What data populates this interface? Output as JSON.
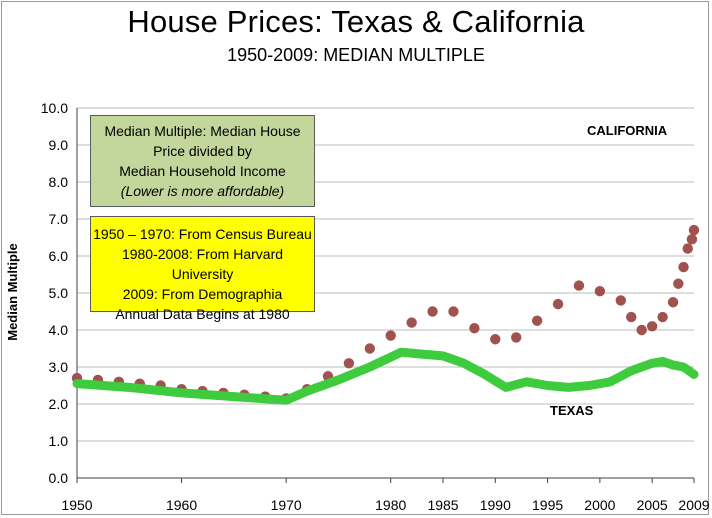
{
  "colors": {
    "california": "#a0524e",
    "texas": "#3ecc3e",
    "grid": "#bdbdbd",
    "axis": "#404040"
  },
  "chart_data": {
    "type": "line",
    "title": "House Prices: Texas & California",
    "subtitle": "1950-2009: MEDIAN MULTIPLE",
    "ylabel": "Median Multiple",
    "xlabel": "",
    "ylim": [
      0,
      10
    ],
    "xlim": [
      1950,
      2009
    ],
    "grid": true,
    "y_ticks": [
      "0.0",
      "1.0",
      "2.0",
      "3.0",
      "4.0",
      "5.0",
      "6.0",
      "7.0",
      "8.0",
      "9.0",
      "10.0"
    ],
    "x_ticks": [
      "1950",
      "1960",
      "1970",
      "1980",
      "1985",
      "1990",
      "1995",
      "2000",
      "2005",
      "2009"
    ],
    "series": [
      {
        "name": "CALIFORNIA",
        "style": "dots",
        "x": [
          1950,
          1952,
          1954,
          1956,
          1958,
          1960,
          1962,
          1964,
          1966,
          1968,
          1970,
          1972,
          1974,
          1976,
          1978,
          1980,
          1982,
          1984,
          1986,
          1988,
          1990,
          1992,
          1994,
          1996,
          1998,
          2000,
          2002,
          2003,
          2004,
          2005,
          2006,
          2007,
          2007.5,
          2008,
          2008.4,
          2008.8,
          2009
        ],
        "y": [
          2.7,
          2.65,
          2.6,
          2.55,
          2.5,
          2.4,
          2.35,
          2.3,
          2.25,
          2.2,
          2.15,
          2.4,
          2.75,
          3.1,
          3.5,
          3.85,
          4.2,
          4.5,
          4.5,
          4.05,
          3.75,
          3.8,
          4.25,
          4.7,
          5.2,
          5.05,
          4.8,
          4.35,
          4.0,
          4.1,
          4.35,
          4.75,
          5.25,
          5.7,
          6.2,
          6.45,
          6.7
        ]
      },
      {
        "name": "TEXAS",
        "style": "thick-line",
        "x": [
          1950,
          1955,
          1960,
          1965,
          1970,
          1972,
          1975,
          1978,
          1981,
          1983,
          1985,
          1987,
          1989,
          1991,
          1993,
          1995,
          1997,
          1999,
          2001,
          2003,
          2005,
          2006,
          2007,
          2008,
          2009
        ],
        "y": [
          2.55,
          2.45,
          2.3,
          2.2,
          2.1,
          2.35,
          2.65,
          3.0,
          3.4,
          3.35,
          3.3,
          3.1,
          2.8,
          2.45,
          2.6,
          2.5,
          2.45,
          2.5,
          2.6,
          2.9,
          3.1,
          3.15,
          3.05,
          3.0,
          2.8
        ]
      }
    ],
    "annotations": {
      "california_label": "CALIFORNIA",
      "texas_label": "TEXAS",
      "definition_box": [
        "Median Multiple: Median House",
        "Price divided by",
        "Median Household Income",
        "(Lower is more affordable)"
      ],
      "source_box": [
        "1950 – 1970: From Census Bureau",
        "1980-2008: From Harvard University",
        "2009: From Demographia",
        "Annual Data Begins at 1980"
      ]
    }
  }
}
